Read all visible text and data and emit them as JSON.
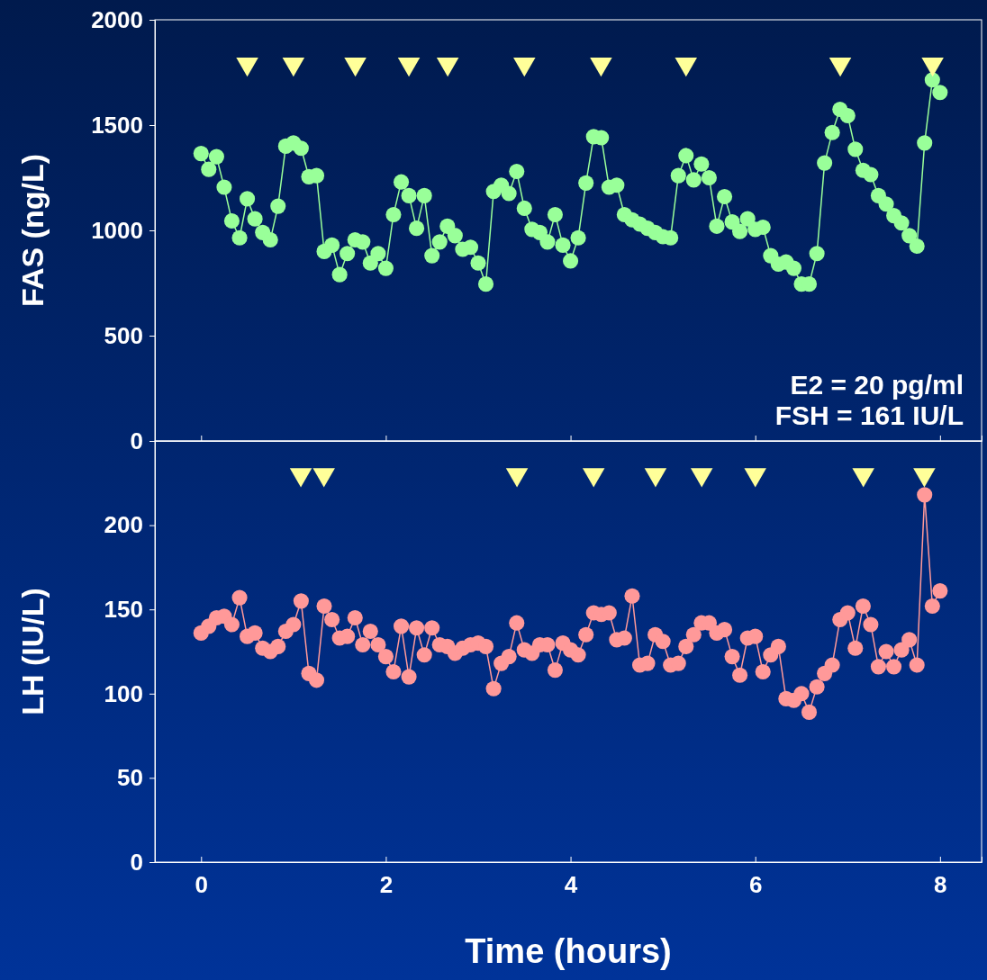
{
  "chart_data": [
    {
      "type": "line",
      "ylabel": "FAS (ng/L)",
      "xlim": [
        -0.5,
        8.45
      ],
      "xticks": [
        0,
        2,
        4,
        6,
        8
      ],
      "ylim": [
        0,
        2000
      ],
      "yticks": [
        0,
        500,
        1000,
        1500,
        2000
      ],
      "tick_labels": "y",
      "grid": false,
      "annotations": [
        "E2 = 20 pg/ml",
        "FSH = 161 IU/L"
      ],
      "x": [
        0,
        0.083,
        0.167,
        0.25,
        0.333,
        0.417,
        0.5,
        0.583,
        0.667,
        0.75,
        0.833,
        0.917,
        1,
        1.083,
        1.167,
        1.25,
        1.333,
        1.417,
        1.5,
        1.583,
        1.667,
        1.75,
        1.833,
        1.917,
        2,
        2.083,
        2.167,
        2.25,
        2.333,
        2.417,
        2.5,
        2.583,
        2.667,
        2.75,
        2.833,
        2.917,
        3,
        3.083,
        3.167,
        3.25,
        3.333,
        3.417,
        3.5,
        3.583,
        3.667,
        3.75,
        3.833,
        3.917,
        4,
        4.083,
        4.167,
        4.25,
        4.333,
        4.417,
        4.5,
        4.583,
        4.667,
        4.75,
        4.833,
        4.917,
        5,
        5.083,
        5.167,
        5.25,
        5.333,
        5.417,
        5.5,
        5.583,
        5.667,
        5.75,
        5.833,
        5.917,
        6,
        6.083,
        6.167,
        6.25,
        6.333,
        6.417,
        6.5,
        6.583,
        6.667,
        6.75,
        6.833,
        6.917,
        7,
        7.083,
        7.167,
        7.25,
        7.333,
        7.417,
        7.5,
        7.583,
        7.667,
        7.75,
        7.833,
        7.917,
        8
      ],
      "series": [
        {
          "color": "#99ff99",
          "marker": "circle",
          "values": [
            1365,
            1290,
            1350,
            1205,
            1045,
            965,
            1150,
            1055,
            990,
            955,
            1115,
            1400,
            1415,
            1390,
            1255,
            1260,
            900,
            930,
            790,
            890,
            955,
            945,
            845,
            890,
            820,
            1075,
            1230,
            1165,
            1010,
            1165,
            880,
            945,
            1020,
            975,
            910,
            920,
            845,
            745,
            1185,
            1215,
            1175,
            1280,
            1105,
            1005,
            990,
            945,
            1075,
            930,
            855,
            965,
            1225,
            1445,
            1440,
            1205,
            1215,
            1075,
            1050,
            1030,
            1010,
            990,
            970,
            965,
            1260,
            1355,
            1240,
            1315,
            1250,
            1020,
            1160,
            1040,
            995,
            1055,
            1005,
            1015,
            880,
            840,
            850,
            820,
            745,
            745,
            890,
            1320,
            1465,
            1575,
            1545,
            1385,
            1285,
            1265,
            1165,
            1125,
            1070,
            1035,
            975,
            925,
            1415,
            1715,
            1655
          ]
        },
        {
          "type": "scatter",
          "color": "#ffff99",
          "marker": "triangle",
          "x": [
            0.5,
            1,
            1.67,
            2.25,
            2.67,
            3.5,
            4.33,
            5.25,
            6.92,
            7.92
          ],
          "values": [
            1790,
            1790,
            1790,
            1790,
            1790,
            1790,
            1790,
            1790,
            1790,
            1790
          ]
        }
      ]
    },
    {
      "type": "line",
      "ylabel": "LH (IU/L)",
      "xlabel": "Time (hours)",
      "xlim": [
        -0.5,
        8.45
      ],
      "xticks": [
        0,
        2,
        4,
        6,
        8
      ],
      "ylim": [
        0,
        250
      ],
      "yticks": [
        0,
        50,
        100,
        150,
        200
      ],
      "grid": false,
      "x": [
        0,
        0.083,
        0.167,
        0.25,
        0.333,
        0.417,
        0.5,
        0.583,
        0.667,
        0.75,
        0.833,
        0.917,
        1,
        1.083,
        1.167,
        1.25,
        1.333,
        1.417,
        1.5,
        1.583,
        1.667,
        1.75,
        1.833,
        1.917,
        2,
        2.083,
        2.167,
        2.25,
        2.333,
        2.417,
        2.5,
        2.583,
        2.667,
        2.75,
        2.833,
        2.917,
        3,
        3.083,
        3.167,
        3.25,
        3.333,
        3.417,
        3.5,
        3.583,
        3.667,
        3.75,
        3.833,
        3.917,
        4,
        4.083,
        4.167,
        4.25,
        4.333,
        4.417,
        4.5,
        4.583,
        4.667,
        4.75,
        4.833,
        4.917,
        5,
        5.083,
        5.167,
        5.25,
        5.333,
        5.417,
        5.5,
        5.583,
        5.667,
        5.75,
        5.833,
        5.917,
        6,
        6.083,
        6.167,
        6.25,
        6.333,
        6.417,
        6.5,
        6.583,
        6.667,
        6.75,
        6.833,
        6.917,
        7,
        7.083,
        7.167,
        7.25,
        7.333,
        7.417,
        7.5,
        7.583,
        7.667,
        7.75,
        7.833,
        7.917,
        8
      ],
      "series": [
        {
          "color": "#ff9999",
          "marker": "circle",
          "values": [
            136,
            140,
            145,
            146,
            141,
            157,
            134,
            136,
            127,
            125,
            128,
            137,
            141,
            155,
            112,
            108,
            152,
            144,
            133,
            134,
            145,
            129,
            137,
            129,
            122,
            113,
            140,
            110,
            139,
            123,
            139,
            129,
            128,
            124,
            127,
            129,
            130,
            128,
            103,
            118,
            122,
            142,
            126,
            124,
            129,
            129,
            114,
            130,
            126,
            123,
            135,
            148,
            147,
            148,
            132,
            133,
            158,
            117,
            118,
            135,
            131,
            117,
            118,
            128,
            135,
            142,
            142,
            136,
            138,
            122,
            111,
            133,
            134,
            113,
            123,
            128,
            97,
            96,
            100,
            89,
            104,
            112,
            117,
            144,
            148,
            127,
            152,
            141,
            116,
            125,
            116,
            126,
            132,
            117,
            218,
            152,
            161
          ]
        },
        {
          "type": "scatter",
          "color": "#ffff99",
          "marker": "triangle",
          "x": [
            1.08,
            1.33,
            3.42,
            4.25,
            4.92,
            5.42,
            6,
            7.17,
            7.83
          ],
          "values": [
            230,
            230,
            230,
            230,
            230,
            230,
            230,
            230,
            230
          ]
        }
      ]
    }
  ]
}
